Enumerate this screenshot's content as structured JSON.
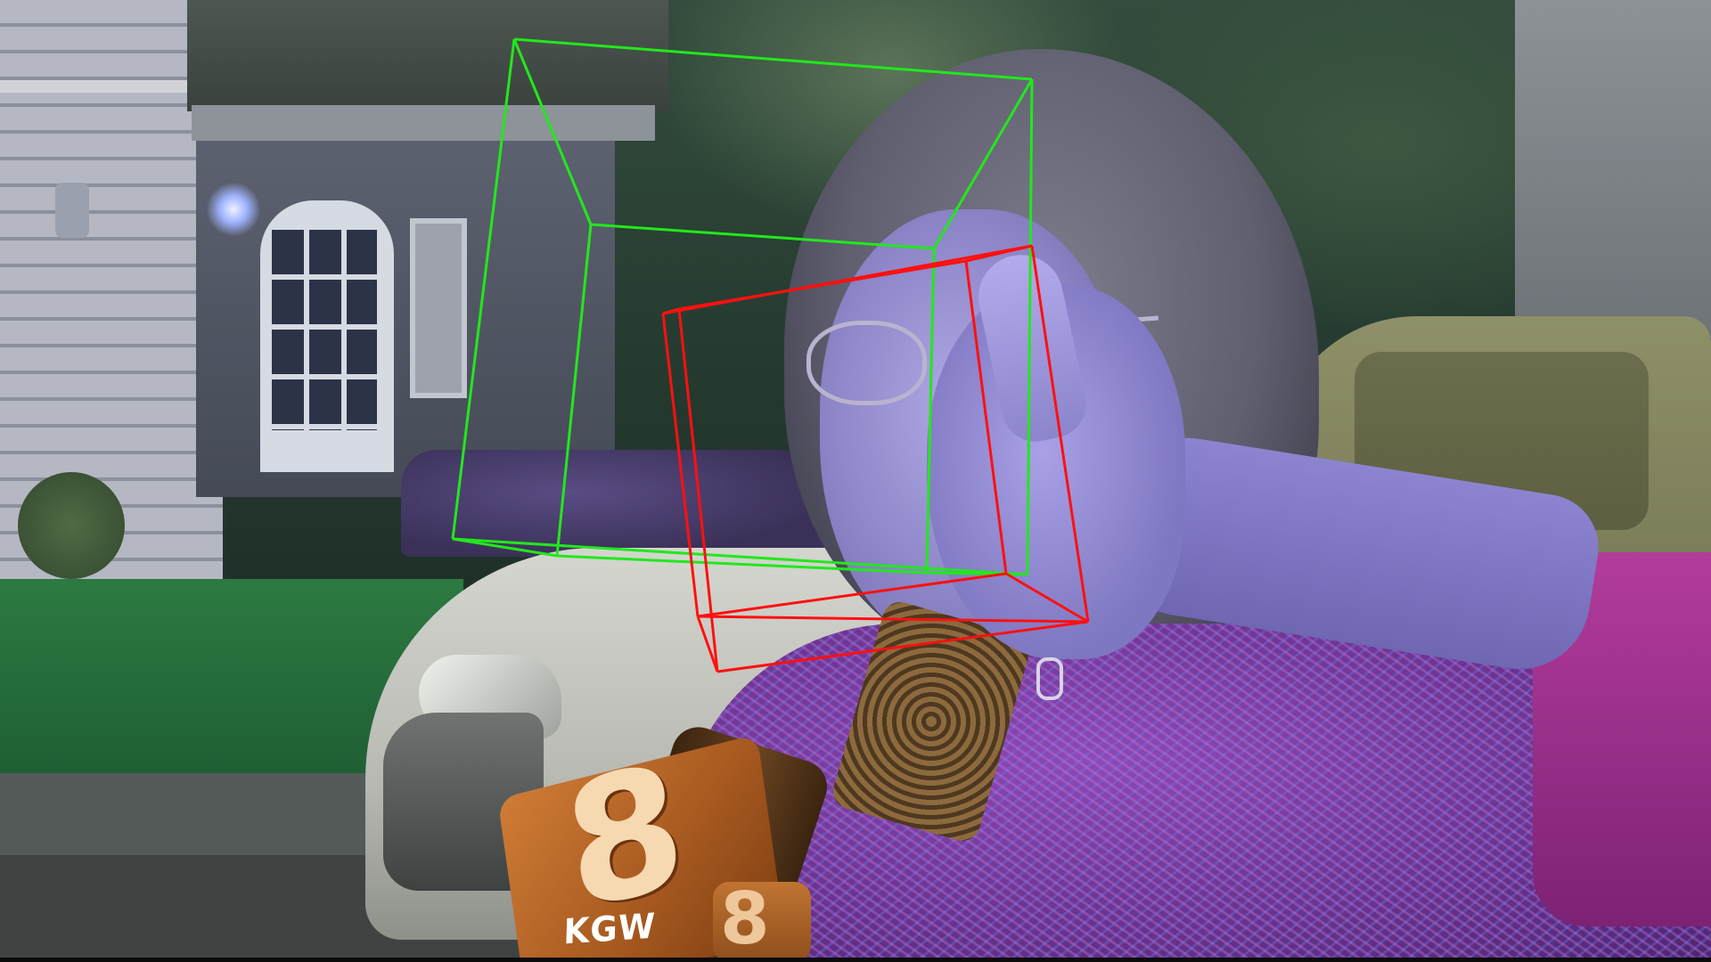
{
  "microphone": {
    "channel_number": "8",
    "station_label": "KGW",
    "flag_color": "#c06a2a"
  },
  "overlay": {
    "green_box_color": "#22e81c",
    "red_box_color": "#ff1010"
  }
}
